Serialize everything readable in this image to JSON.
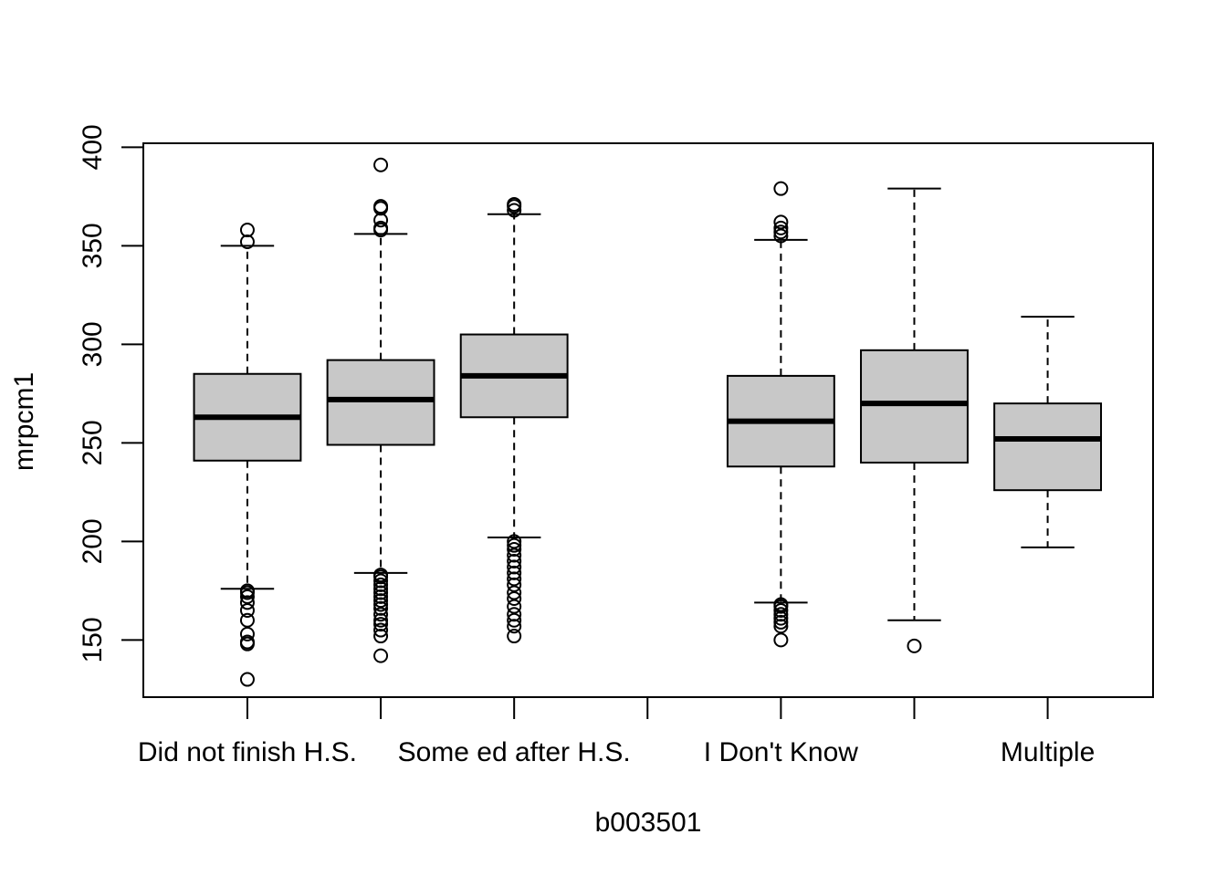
{
  "chart_data": {
    "type": "boxplot",
    "title": "",
    "xlabel": "b003501",
    "ylabel": "mrpcm1",
    "ylim": [
      121,
      402
    ],
    "yticks": [
      150,
      200,
      250,
      300,
      350,
      400
    ],
    "grid": false,
    "legend": "none",
    "box_color": "#c8c8c8",
    "categories": [
      {
        "label": "Did not finish H.S.",
        "show_label": true
      },
      {
        "label": "",
        "show_label": false
      },
      {
        "label": "Some ed after H.S.",
        "show_label": true
      },
      {
        "label": "",
        "show_label": false
      },
      {
        "label": "I Don't Know",
        "show_label": true
      },
      {
        "label": "",
        "show_label": false
      },
      {
        "label": "Multiple",
        "show_label": true
      }
    ],
    "boxes": [
      {
        "whisker_low": 176,
        "q1": 241,
        "median": 263,
        "q3": 285,
        "whisker_high": 350,
        "outliers": [
          130,
          148,
          149,
          153,
          160,
          165,
          169,
          172,
          174,
          175,
          352,
          358
        ]
      },
      {
        "whisker_low": 184,
        "q1": 249,
        "median": 272,
        "q3": 292,
        "whisker_high": 356,
        "outliers": [
          142,
          152,
          155,
          158,
          160,
          163,
          166,
          168,
          170,
          172,
          174,
          176,
          178,
          180,
          182,
          183,
          358,
          359,
          363,
          369,
          370,
          391
        ]
      },
      {
        "whisker_low": 202,
        "q1": 263,
        "median": 284,
        "q3": 305,
        "whisker_high": 366,
        "outliers": [
          152,
          157,
          160,
          163,
          167,
          171,
          174,
          178,
          181,
          184,
          187,
          190,
          193,
          196,
          198,
          200,
          368,
          370,
          371
        ]
      },
      null,
      {
        "whisker_low": 169,
        "q1": 238,
        "median": 261,
        "q3": 284,
        "whisker_high": 353,
        "outliers": [
          150,
          157,
          159,
          161,
          163,
          165,
          167,
          168,
          355,
          357,
          359,
          362,
          379
        ]
      },
      {
        "whisker_low": 160,
        "q1": 240,
        "median": 270,
        "q3": 297,
        "whisker_high": 379,
        "outliers": [
          147
        ]
      },
      {
        "whisker_low": 197,
        "q1": 226,
        "median": 252,
        "q3": 270,
        "whisker_high": 314,
        "outliers": []
      }
    ]
  }
}
